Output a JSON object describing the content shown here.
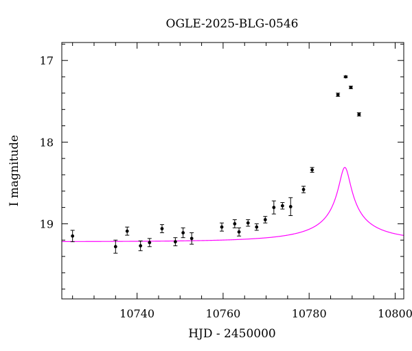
{
  "chart_data": {
    "type": "scatter",
    "title": "OGLE-2025-BLG-0546",
    "xlabel": "HJD - 2450000",
    "ylabel": "I magnitude",
    "xlim": [
      10722.5,
      10802
    ],
    "ylim": [
      19.92,
      16.78
    ],
    "y_inverted": true,
    "x_ticks": [
      10740,
      10760,
      10780,
      10800
    ],
    "y_ticks": [
      17,
      18,
      19
    ],
    "grid": false,
    "colors": {
      "points": "#000000",
      "model": "#ff00ff",
      "axes": "#000000"
    },
    "series": [
      {
        "type": "scatter_with_errorbars",
        "x": [
          10725.0,
          10735.0,
          10737.7,
          10740.8,
          10742.9,
          10745.8,
          10748.9,
          10750.7,
          10752.7,
          10759.7,
          10762.7,
          10763.7,
          10765.8,
          10767.8,
          10769.8,
          10771.8,
          10773.8,
          10775.7,
          10778.7,
          10780.7,
          10786.7,
          10788.5,
          10789.7,
          10791.6
        ],
        "y": [
          19.15,
          19.28,
          19.09,
          19.27,
          19.23,
          19.06,
          19.22,
          19.11,
          19.18,
          19.04,
          19.0,
          19.1,
          18.99,
          19.04,
          18.95,
          18.8,
          18.78,
          18.79,
          18.58,
          18.34,
          17.42,
          17.2,
          17.33,
          17.66
        ],
        "yerr": [
          0.07,
          0.08,
          0.05,
          0.06,
          0.05,
          0.05,
          0.05,
          0.06,
          0.07,
          0.05,
          0.05,
          0.05,
          0.04,
          0.04,
          0.04,
          0.08,
          0.04,
          0.11,
          0.04,
          0.03,
          0.02,
          0.01,
          0.015,
          0.02
        ]
      },
      {
        "type": "model_curve",
        "model": {
          "baseline": 19.22,
          "t0": 10788.3,
          "tE": 25.8,
          "u0": 0.05,
          "fs": 0.069
        }
      }
    ]
  }
}
